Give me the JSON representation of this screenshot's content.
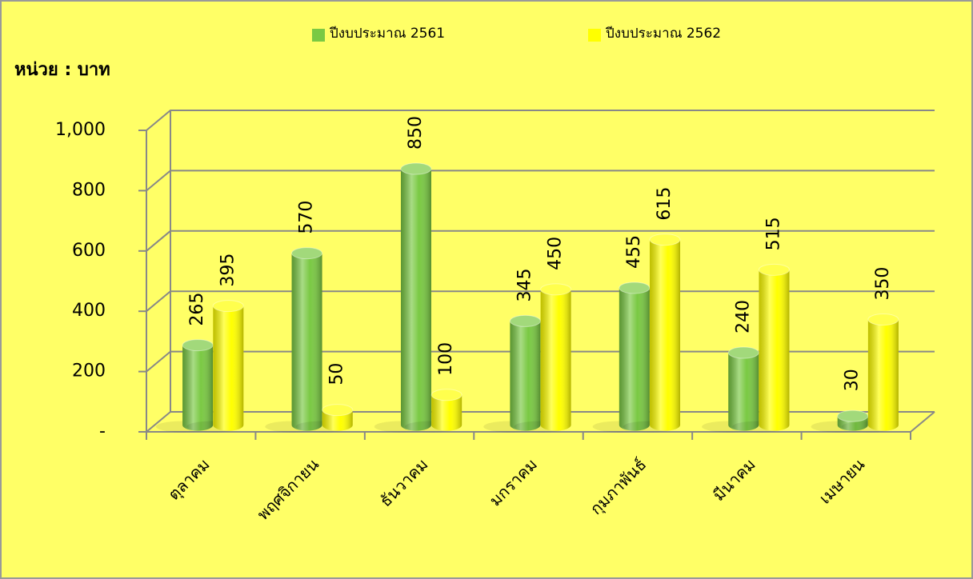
{
  "chart_data": {
    "type": "bar3d",
    "y_label": "หน่วย : บาท",
    "categories": [
      "ตุลาคม",
      "พฤศจิกายน",
      "ธันวาคม",
      "มกราคม",
      "กุมภาพันธ์",
      "มีนาคม",
      "เมษายน"
    ],
    "series": [
      {
        "name": "ปีงบประมาณ 2561",
        "color": "#7ac943",
        "values": [
          265,
          570,
          850,
          345,
          455,
          240,
          30
        ]
      },
      {
        "name": "ปีงบประมาณ 2562",
        "color": "#ffff00",
        "values": [
          395,
          50,
          100,
          450,
          615,
          515,
          350
        ]
      }
    ],
    "ylim": [
      0,
      1000
    ],
    "yticks": [
      {
        "value": 0,
        "label": "-"
      },
      200,
      400,
      600,
      800,
      {
        "value": 1000,
        "label": "1,000"
      }
    ],
    "grid": true,
    "legend": "top"
  }
}
